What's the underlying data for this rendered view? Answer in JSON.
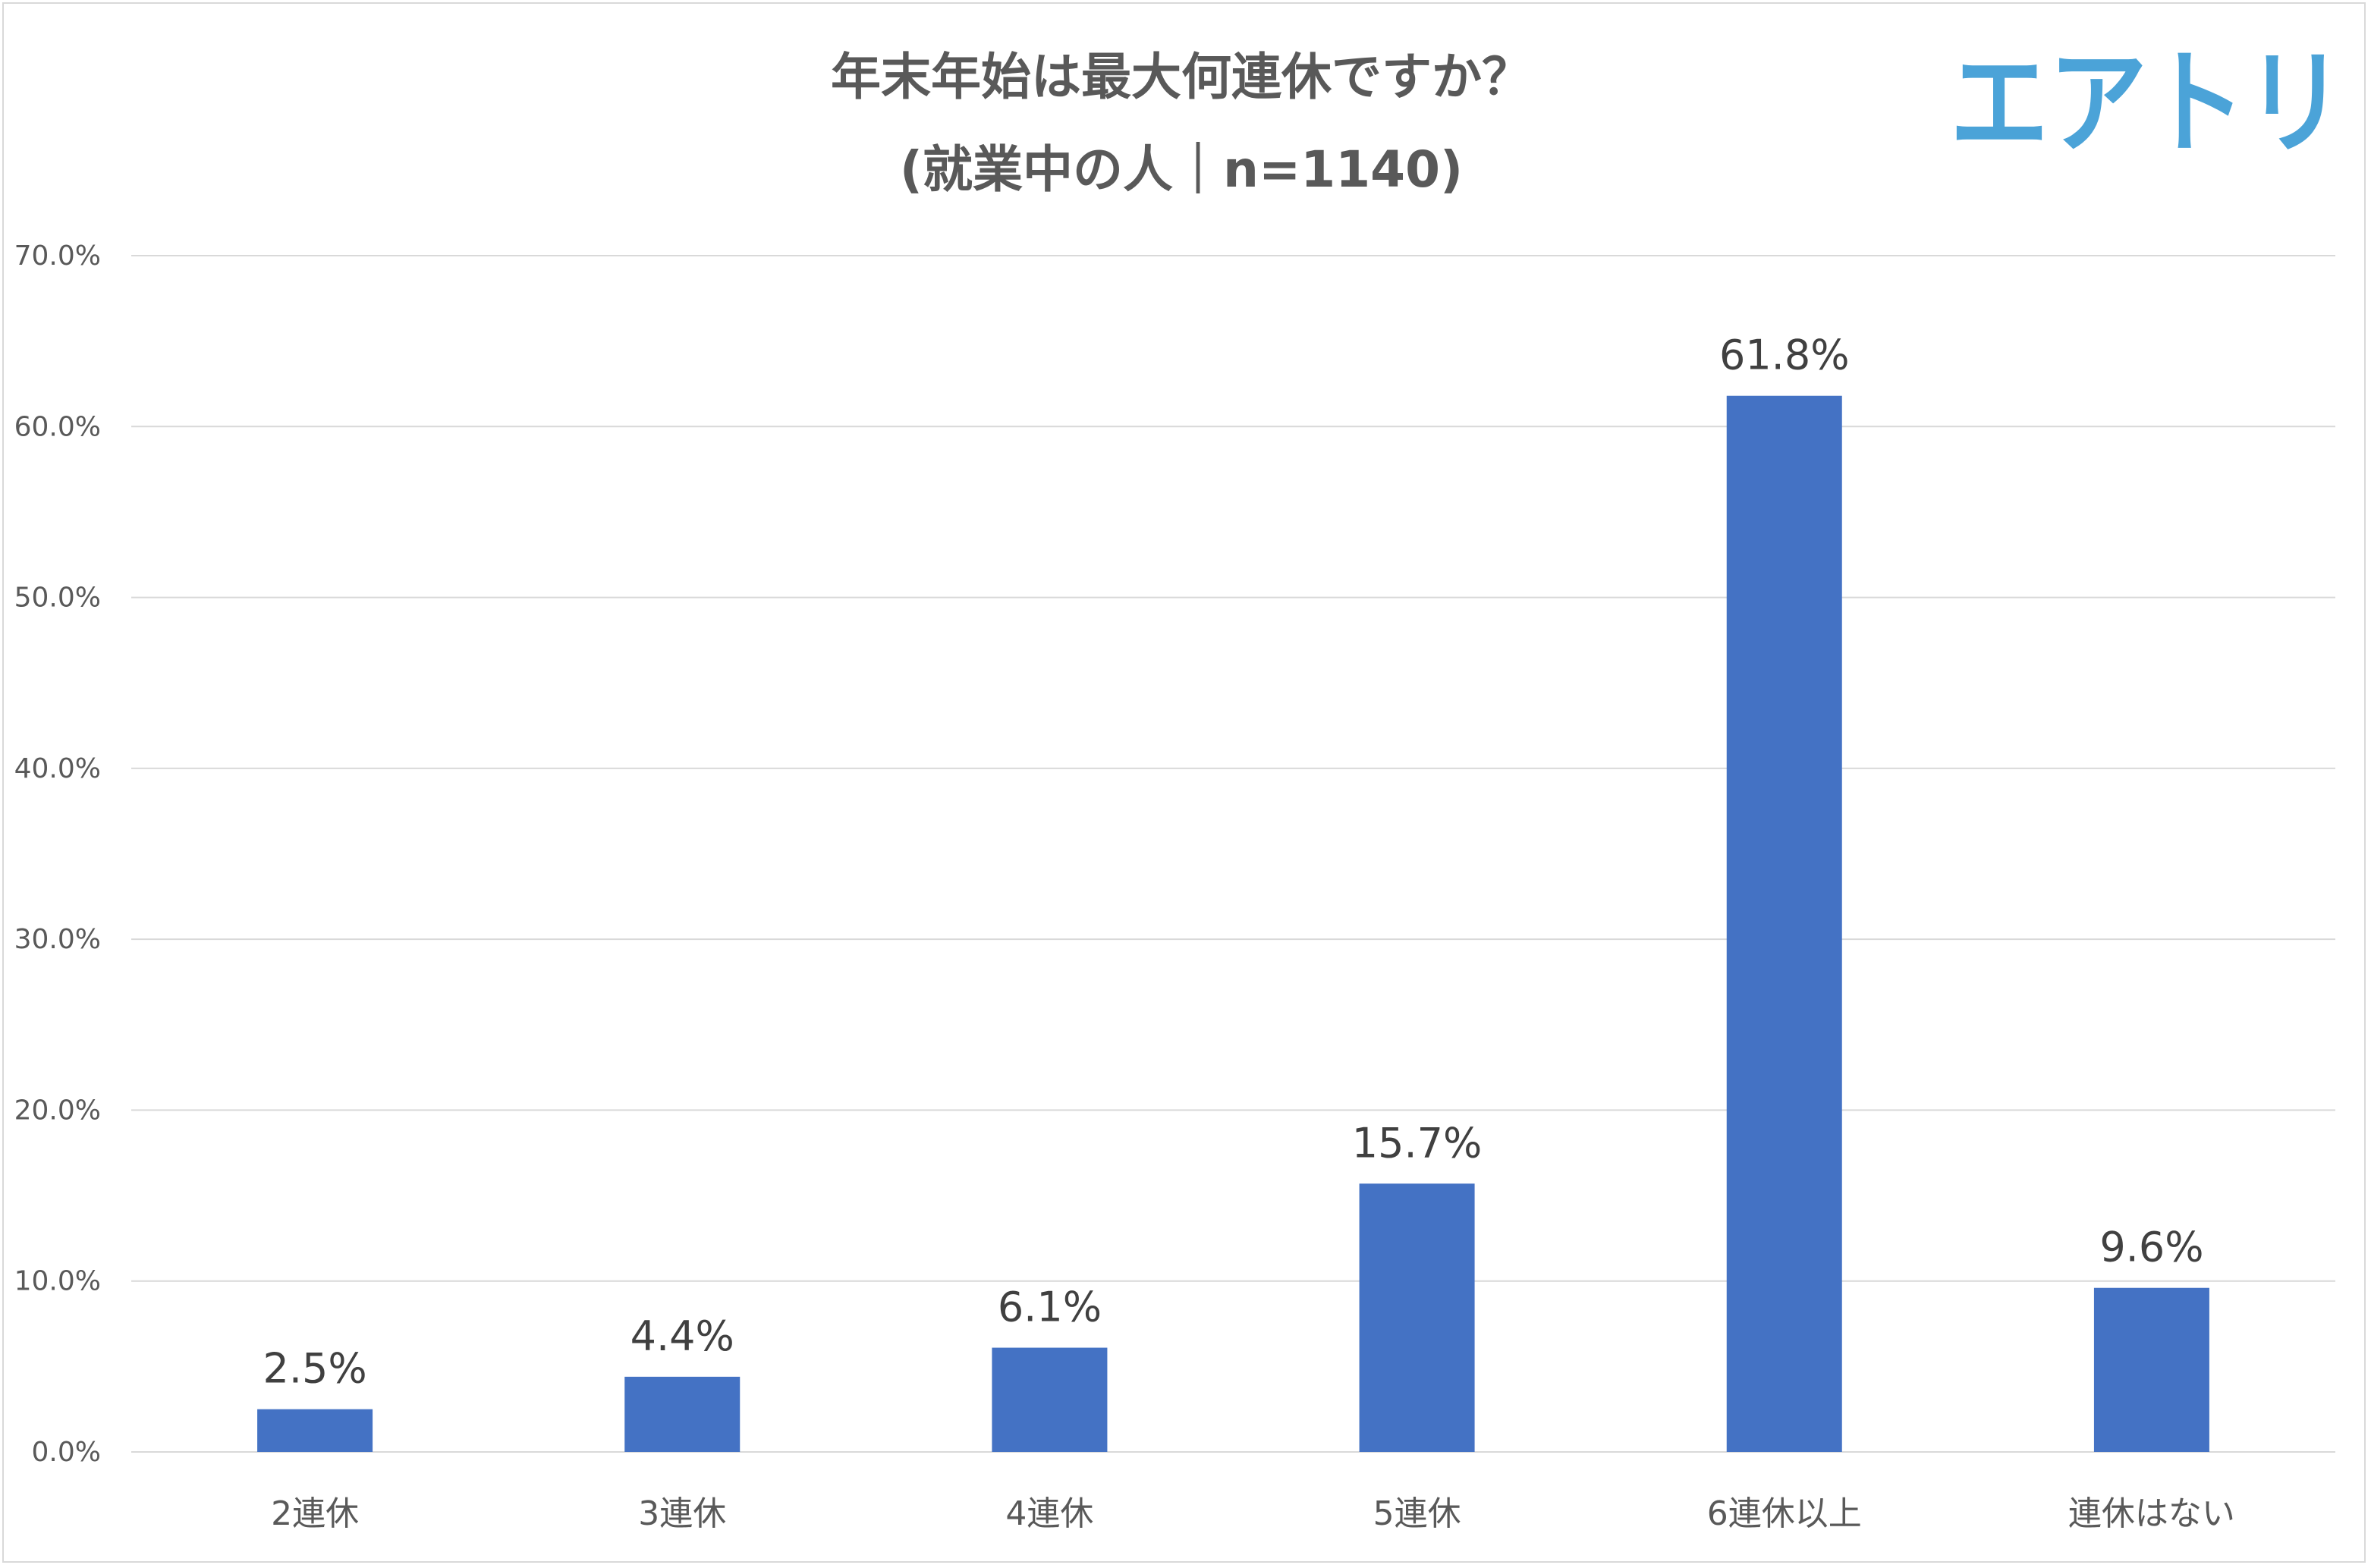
{
  "chart_data": {
    "type": "bar",
    "title": "年末年始は最大何連休ですか？",
    "subtitle": "(就業中の人｜n=1140)",
    "categories": [
      "2連休",
      "3連休",
      "4連休",
      "5連休",
      "6連休以上",
      "連休はない"
    ],
    "values": [
      2.5,
      4.4,
      6.1,
      15.7,
      61.8,
      9.6
    ],
    "value_labels": [
      "2.5%",
      "4.4%",
      "6.1%",
      "15.7%",
      "61.8%",
      "9.6%"
    ],
    "yticks": [
      "0.0%",
      "10.0%",
      "20.0%",
      "30.0%",
      "40.0%",
      "50.0%",
      "60.0%",
      "70.0%"
    ],
    "ylim": [
      0,
      70
    ],
    "xlabel": "",
    "ylabel": "",
    "grid": true,
    "legend": "none",
    "colors": {
      "bar": "#4472c4",
      "grid": "#d9d9d9",
      "text": "#595959"
    }
  },
  "brand": {
    "logo_text": "エアトリ",
    "logo_color": "#4ba3d8"
  }
}
